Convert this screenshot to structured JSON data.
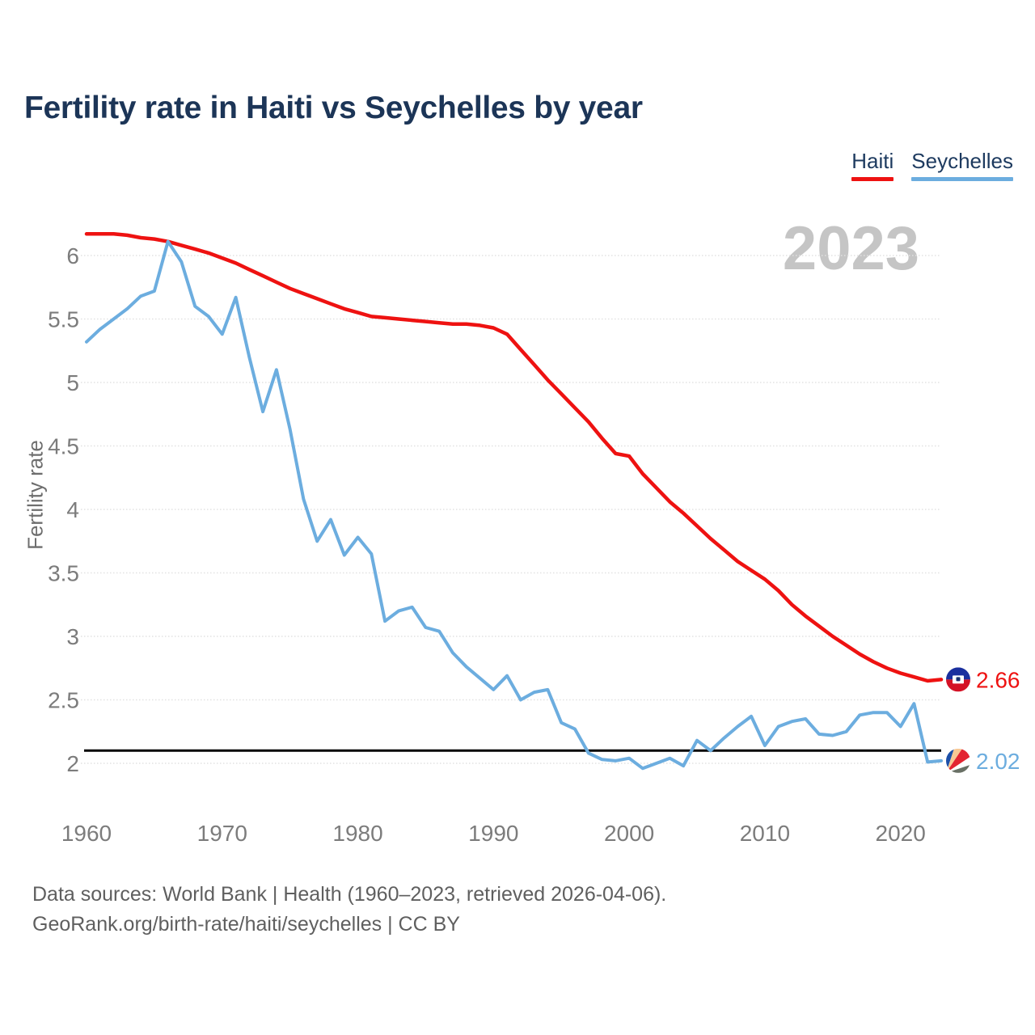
{
  "header": {
    "title": "Fertility rate in Haiti vs Seychelles by year"
  },
  "legend": {
    "items": [
      {
        "label": "Haiti",
        "color": "#ee1211"
      },
      {
        "label": "Seychelles",
        "color": "#6caddf"
      }
    ]
  },
  "chart": {
    "watermark": "2023",
    "y_axis_label": "Fertility rate",
    "end_labels": [
      {
        "series": "Haiti",
        "value": "2.66",
        "flag": "haiti"
      },
      {
        "series": "Seychelles",
        "value": "2.02",
        "flag": "seychelles"
      }
    ],
    "colors": {
      "grid": "#e2e2e2",
      "tick_text": "#7c7c7c",
      "reference_line": "#000000"
    }
  },
  "chart_data": {
    "type": "line",
    "title": "Fertility rate in Haiti vs Seychelles by year",
    "xlabel": "",
    "ylabel": "Fertility rate",
    "x": [
      1960,
      1961,
      1962,
      1963,
      1964,
      1965,
      1966,
      1967,
      1968,
      1969,
      1970,
      1971,
      1972,
      1973,
      1974,
      1975,
      1976,
      1977,
      1978,
      1979,
      1980,
      1981,
      1982,
      1983,
      1984,
      1985,
      1986,
      1987,
      1988,
      1989,
      1990,
      1991,
      1992,
      1993,
      1994,
      1995,
      1996,
      1997,
      1998,
      1999,
      2000,
      2001,
      2002,
      2003,
      2004,
      2005,
      2006,
      2007,
      2008,
      2009,
      2010,
      2011,
      2012,
      2013,
      2014,
      2015,
      2016,
      2017,
      2018,
      2019,
      2020,
      2021,
      2022,
      2023
    ],
    "series": [
      {
        "name": "Haiti",
        "color": "#ee1211",
        "values": [
          6.17,
          6.17,
          6.17,
          6.16,
          6.14,
          6.13,
          6.11,
          6.08,
          6.05,
          6.02,
          5.98,
          5.94,
          5.89,
          5.84,
          5.79,
          5.74,
          5.7,
          5.66,
          5.62,
          5.58,
          5.55,
          5.52,
          5.51,
          5.5,
          5.49,
          5.48,
          5.47,
          5.46,
          5.46,
          5.45,
          5.43,
          5.38,
          5.26,
          5.14,
          5.02,
          4.91,
          4.8,
          4.69,
          4.56,
          4.44,
          4.42,
          4.28,
          4.17,
          4.06,
          3.97,
          3.87,
          3.77,
          3.68,
          3.59,
          3.52,
          3.45,
          3.36,
          3.25,
          3.16,
          3.08,
          3.0,
          2.93,
          2.86,
          2.8,
          2.75,
          2.71,
          2.68,
          2.65,
          2.66
        ]
      },
      {
        "name": "Seychelles",
        "color": "#6caddf",
        "values": [
          5.32,
          5.42,
          5.5,
          5.58,
          5.68,
          5.72,
          6.11,
          5.95,
          5.6,
          5.52,
          5.38,
          5.67,
          5.2,
          4.77,
          5.1,
          4.63,
          4.08,
          3.75,
          3.92,
          3.64,
          3.78,
          3.65,
          3.12,
          3.2,
          3.23,
          3.07,
          3.04,
          2.87,
          2.76,
          2.67,
          2.58,
          2.69,
          2.5,
          2.56,
          2.58,
          2.32,
          2.27,
          2.08,
          2.03,
          2.02,
          2.04,
          1.96,
          2.0,
          2.04,
          1.98,
          2.18,
          2.1,
          2.2,
          2.29,
          2.37,
          2.14,
          2.29,
          2.33,
          2.35,
          2.23,
          2.22,
          2.25,
          2.38,
          2.4,
          2.4,
          2.29,
          2.47,
          2.01,
          2.02
        ]
      }
    ],
    "reference_line": {
      "value": 2.1
    },
    "x_ticks": [
      1960,
      1970,
      1980,
      1990,
      2000,
      2010,
      2020
    ],
    "y_ticks": [
      2,
      2.5,
      3,
      3.5,
      4,
      4.5,
      5,
      5.5,
      6
    ],
    "xlim": [
      1960,
      2023
    ],
    "ylim": [
      1.85,
      6.35
    ],
    "grid": true,
    "legend_position": "top-right"
  },
  "flag_colors": {
    "haiti": {
      "blue": "#1a2f9e",
      "red": "#d41225",
      "white": "#ffffff",
      "emblem": "#163070"
    },
    "seychelles": {
      "blue": "#1c4fa8",
      "yellow": "#f8c894",
      "red": "#e32431",
      "white": "#ffffff",
      "green": "#697065"
    }
  },
  "footer": {
    "line1": "Data sources: World Bank | Health (1960–2023, retrieved 2026-04-06).",
    "line2": "GeoRank.org/birth-rate/haiti/seychelles | CC BY"
  }
}
